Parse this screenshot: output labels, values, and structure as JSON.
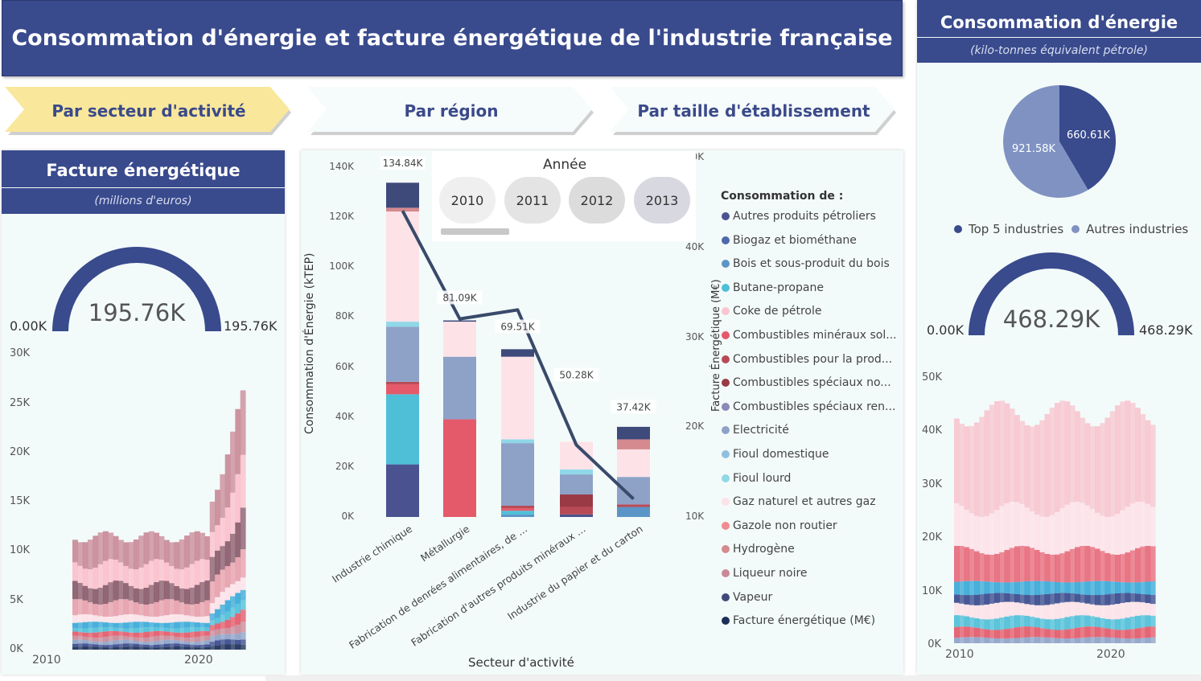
{
  "title": "Consommation d'énergie et facture énergétique de l'industrie française",
  "nav": [
    {
      "label": "Par secteur d'activité",
      "active": true
    },
    {
      "label": "Par région",
      "active": false
    },
    {
      "label": "Par taille d'établissement",
      "active": false
    }
  ],
  "facture": {
    "title": "Facture énergétique",
    "subtitle": "(millions d'euros)",
    "gauge_value": "195.76K",
    "gauge_min": "0.00K",
    "gauge_max": "195.76K",
    "y_ticks": [
      "30K",
      "25K",
      "20K",
      "15K",
      "10K",
      "5K",
      "0K"
    ],
    "x_ticks": [
      "2010",
      "2020"
    ]
  },
  "main_chart": {
    "y_left_ticks": [
      "140K",
      "120K",
      "100K",
      "80K",
      "60K",
      "40K",
      "20K",
      "0K"
    ],
    "y_right_ticks": [
      "50K",
      "40K",
      "30K",
      "20K",
      "10K"
    ],
    "y_left_label": "Consommation d'Énergie (kTEP)",
    "y_right_label": "Facture Énergétique (M€)",
    "x_label": "Secteur d'activité",
    "categories": [
      "Industrie chimique",
      "Métallurgie",
      "Fabrication de denrées alimentaires, de ...",
      "Fabrication d'autres produits minéraux ...",
      "Industrie du papier et du carton"
    ],
    "totals": [
      "134.84K",
      "81.09K",
      "69.51K",
      "50.28K",
      "37.42K"
    ],
    "year_slicer": {
      "title": "Année",
      "years": [
        "2010",
        "2011",
        "2012",
        "2013"
      ]
    }
  },
  "legend": {
    "title": "Consommation de :",
    "items": [
      {
        "label": "Autres produits pétroliers",
        "color": "#4a5290"
      },
      {
        "label": "Biogaz et biométhane",
        "color": "#4f6aaa"
      },
      {
        "label": "Bois et sous-produit du bois",
        "color": "#5b95c8"
      },
      {
        "label": "Butane-propane",
        "color": "#4fbfd8"
      },
      {
        "label": "Coke de pétrole",
        "color": "#f9c6d0"
      },
      {
        "label": "Combustibles minéraux sol...",
        "color": "#e45a6a"
      },
      {
        "label": "Combustibles pour la prod...",
        "color": "#b84a55"
      },
      {
        "label": "Combustibles spéciaux no...",
        "color": "#9a3a45"
      },
      {
        "label": "Combustibles spéciaux ren...",
        "color": "#8a8ab8"
      },
      {
        "label": "Electricité",
        "color": "#8ea2c8"
      },
      {
        "label": "Fioul domestique",
        "color": "#8fc0e0"
      },
      {
        "label": "Fioul lourd",
        "color": "#8fd8e8"
      },
      {
        "label": "Gaz naturel et autres gaz",
        "color": "#fde2e8"
      },
      {
        "label": "Gazole non routier",
        "color": "#ef8c8f"
      },
      {
        "label": "Hydrogène",
        "color": "#d48a8e"
      },
      {
        "label": "Liqueur noire",
        "color": "#c98a98"
      },
      {
        "label": "Vapeur",
        "color": "#3e4a7a"
      },
      {
        "label": "Facture énergétique (M€)",
        "color": "#1c2f5a"
      }
    ]
  },
  "conso": {
    "title": "Consommation d'énergie",
    "subtitle": "(kilo-tonnes équivalent pétrole)",
    "pie_labels": [
      "660.61K",
      "921.58K"
    ],
    "pie_legend": [
      "Top 5 industries",
      "Autres industries"
    ],
    "gauge_value": "468.29K",
    "gauge_min": "0.00K",
    "gauge_max": "468.29K",
    "y_ticks": [
      "50K",
      "40K",
      "30K",
      "20K",
      "10K",
      "0K"
    ],
    "x_ticks": [
      "2010",
      "2020"
    ]
  },
  "chart_data": {
    "type": "bar",
    "title": "",
    "xlabel": "Secteur d'activité",
    "ylabel": "Consommation d'Énergie (kTEP)",
    "y2label": "Facture Énergétique (M€)",
    "ylim": [
      0,
      140000
    ],
    "y2lim": [
      10000,
      50000
    ],
    "categories": [
      "Industrie chimique",
      "Métallurgie",
      "Fabrication de denrées alimentaires, de ...",
      "Fabrication d'autres produits minéraux ...",
      "Industrie du papier et du carton"
    ],
    "series": [
      {
        "name": "Autres produits pétroliers",
        "values": [
          21000,
          0,
          0,
          1000,
          0
        ]
      },
      {
        "name": "Bois et sous-produit du bois",
        "values": [
          0,
          0,
          1000,
          0,
          4000
        ]
      },
      {
        "name": "Butane-propane",
        "values": [
          28000,
          0,
          1500,
          0,
          0
        ]
      },
      {
        "name": "Combustibles minéraux sol...",
        "values": [
          4000,
          39000,
          1000,
          0,
          0
        ]
      },
      {
        "name": "Combustibles pour la prod...",
        "values": [
          1000,
          0,
          1000,
          3000,
          1000
        ]
      },
      {
        "name": "Combustibles spéciaux no...",
        "values": [
          0,
          0,
          0,
          5000,
          0
        ]
      },
      {
        "name": "Electricité",
        "values": [
          22000,
          25000,
          25000,
          8000,
          11000
        ]
      },
      {
        "name": "Fioul lourd",
        "values": [
          2000,
          0,
          1500,
          2000,
          0
        ]
      },
      {
        "name": "Gaz naturel et autres gaz",
        "values": [
          44000,
          14000,
          33000,
          11000,
          11000
        ]
      },
      {
        "name": "Hydrogène",
        "values": [
          1500,
          0,
          0,
          0,
          4000
        ]
      },
      {
        "name": "Vapeur",
        "values": [
          10000,
          500,
          3000,
          0,
          5000
        ]
      }
    ],
    "totals": [
      134840,
      81090,
      69510,
      50280,
      37420
    ],
    "line": {
      "name": "Facture énergétique (M€)",
      "values": [
        44000,
        32000,
        33000,
        18000,
        12000
      ]
    }
  }
}
